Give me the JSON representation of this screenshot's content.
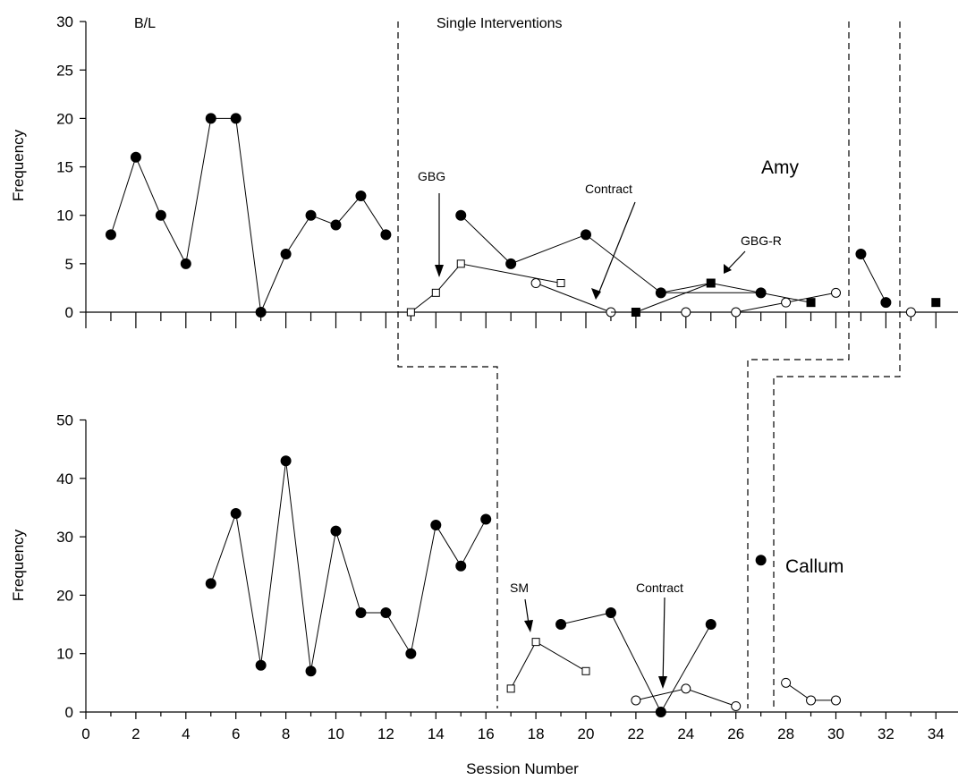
{
  "chart_data": [
    {
      "type": "line",
      "participant": "Amy",
      "ylabel": "Frequency",
      "xlabel": "",
      "ylim": [
        0,
        30
      ],
      "xlim": [
        0,
        35
      ],
      "yticks": [
        0,
        5,
        10,
        15,
        20,
        25,
        30
      ],
      "phase_labels": [
        "B/L",
        "Single Interventions"
      ],
      "annotations": [
        "GBG",
        "Contract",
        "GBG-R"
      ],
      "series": [
        {
          "marker": "filled-circle",
          "segments": [
            [
              [
                1,
                8
              ],
              [
                2,
                16
              ],
              [
                3,
                10
              ],
              [
                4,
                5
              ],
              [
                5,
                20
              ],
              [
                6,
                20
              ],
              [
                7,
                0
              ],
              [
                8,
                6
              ],
              [
                9,
                10
              ],
              [
                10,
                9
              ],
              [
                11,
                12
              ],
              [
                12,
                8
              ]
            ],
            [
              [
                15,
                10
              ],
              [
                17,
                5
              ],
              [
                20,
                8
              ],
              [
                23,
                2
              ],
              [
                27,
                2
              ]
            ],
            [
              [
                31,
                6
              ],
              [
                32,
                1
              ]
            ]
          ]
        },
        {
          "marker": "open-square",
          "segments": [
            [
              [
                13,
                0
              ],
              [
                14,
                2
              ],
              [
                15,
                5
              ],
              [
                19,
                3
              ]
            ]
          ]
        },
        {
          "marker": "open-circle",
          "segments": [
            [
              [
                18,
                3
              ],
              [
                21,
                0
              ]
            ],
            [
              [
                24,
                0
              ]
            ],
            [
              [
                26,
                0
              ],
              [
                28,
                1
              ],
              [
                30,
                2
              ]
            ],
            [
              [
                33,
                0
              ]
            ]
          ]
        },
        {
          "marker": "filled-square",
          "segments": [
            [
              [
                22,
                0
              ],
              [
                25,
                3
              ],
              [
                29,
                1
              ]
            ],
            [
              [
                34,
                1
              ]
            ]
          ]
        },
        {
          "marker": "line-only",
          "segments": [
            [
              [
                21,
                0
              ],
              [
                22,
                0
              ]
            ],
            [
              [
                23,
                2
              ],
              [
                25,
                3
              ]
            ]
          ]
        }
      ]
    },
    {
      "type": "line",
      "participant": "Callum",
      "ylabel": "Frequency",
      "xlabel": "Session Number",
      "ylim": [
        0,
        50
      ],
      "xlim": [
        0,
        35
      ],
      "yticks": [
        0,
        10,
        20,
        30,
        40,
        50
      ],
      "xticks": [
        0,
        2,
        4,
        6,
        8,
        10,
        12,
        14,
        16,
        18,
        20,
        22,
        24,
        26,
        28,
        30,
        32,
        34
      ],
      "annotations": [
        "SM",
        "Contract"
      ],
      "series": [
        {
          "marker": "filled-circle",
          "segments": [
            [
              [
                5,
                22
              ],
              [
                6,
                34
              ],
              [
                7,
                8
              ],
              [
                8,
                43
              ],
              [
                9,
                7
              ],
              [
                10,
                31
              ],
              [
                11,
                17
              ],
              [
                12,
                17
              ],
              [
                13,
                10
              ],
              [
                14,
                32
              ],
              [
                15,
                25
              ],
              [
                16,
                33
              ]
            ],
            [
              [
                19,
                15
              ],
              [
                21,
                17
              ],
              [
                23,
                0
              ],
              [
                25,
                15
              ]
            ],
            [
              [
                27,
                26
              ]
            ]
          ]
        },
        {
          "marker": "open-square",
          "segments": [
            [
              [
                17,
                4
              ],
              [
                18,
                12
              ],
              [
                20,
                7
              ]
            ]
          ]
        },
        {
          "marker": "open-circle",
          "segments": [
            [
              [
                22,
                2
              ],
              [
                24,
                4
              ],
              [
                26,
                1
              ]
            ],
            [
              [
                28,
                5
              ],
              [
                29,
                2
              ],
              [
                30,
                2
              ]
            ]
          ]
        }
      ]
    }
  ]
}
